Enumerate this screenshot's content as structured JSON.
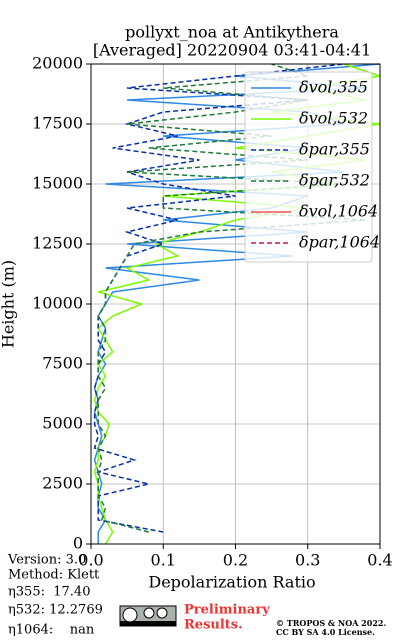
{
  "chart_data": {
    "type": "line",
    "title": [
      "pollyxt_noa at Antikythera",
      "[Averaged] 20220904 03:41-04:41"
    ],
    "xlabel": "Depolarization Ratio",
    "ylabel": "Height (m)",
    "xlim": [
      0,
      0.4
    ],
    "xticks": [
      {
        "value": 0,
        "label": "0.0"
      },
      0.1,
      0.2,
      0.3,
      0.4
    ],
    "ylim": [
      0,
      20000
    ],
    "yticks": [
      0,
      2500,
      5000,
      7500,
      10000,
      12500,
      15000,
      17500,
      20000
    ],
    "grid": true,
    "legend": "upper right",
    "y": [
      0,
      500,
      1000,
      1500,
      2000,
      2500,
      3000,
      3500,
      4000,
      4500,
      5000,
      5500,
      6000,
      6500,
      7000,
      7500,
      8000,
      8500,
      9000,
      9500,
      10000,
      10500,
      11000,
      11500,
      12000,
      12500,
      13000,
      13500,
      14000,
      14500,
      15000,
      15500,
      16000,
      16500,
      17000,
      17500,
      18000,
      18500,
      19000,
      19500,
      20000
    ],
    "series": [
      {
        "name": "δvol,355",
        "color": "#2e8ae6",
        "linestyle": "solid",
        "values": [
          0.01,
          0.01,
          0.02,
          0.01,
          0.01,
          0.015,
          0.01,
          0.005,
          0.01,
          0.015,
          0.01,
          0.005,
          0.01,
          0.005,
          0.01,
          0.02,
          0.01,
          0.015,
          0.02,
          0.01,
          0.02,
          0.03,
          0.15,
          0.02,
          0.28,
          0.05,
          0.3,
          0.1,
          0.25,
          0.3,
          0.02,
          0.35,
          0.2,
          0.3,
          0.1,
          0.35,
          0.3,
          0.05,
          0.38,
          0.2,
          0.4
        ]
      },
      {
        "name": "δvol,532",
        "color": "#7cfc00",
        "linestyle": "solid",
        "values": [
          0.02,
          0.03,
          0.02,
          0.015,
          0.01,
          0.01,
          0.005,
          0.01,
          0.01,
          0.02,
          0.025,
          0.01,
          0.005,
          0.01,
          0.02,
          0.01,
          0.03,
          0.02,
          0.01,
          0.03,
          0.07,
          0.01,
          0.08,
          0.05,
          0.12,
          0.09,
          0.15,
          0.2,
          0.3,
          0.1,
          0.35,
          0.25,
          0.38,
          0.2,
          0.3,
          0.4,
          0.25,
          0.38,
          0.3,
          0.4,
          0.35
        ]
      },
      {
        "name": "δpar,355",
        "color": "#0a2ea8",
        "linestyle": "dashed",
        "values": [
          null,
          0.1,
          0.01,
          0.01,
          0.01,
          0.08,
          0.01,
          0.06,
          0.005,
          0.01,
          0.005,
          0.005,
          0.01,
          0.005,
          0.01,
          0.01,
          0.02,
          0.01,
          0.01,
          0.01,
          0.02,
          0.02,
          0.03,
          0.04,
          0.05,
          0.1,
          0.05,
          0.12,
          0.05,
          0.2,
          0.1,
          0.05,
          0.15,
          0.03,
          0.12,
          0.05,
          0.1,
          0.3,
          0.05,
          0.2,
          0.35
        ]
      },
      {
        "name": "δpar,532",
        "color": "#1e7a3a",
        "linestyle": "dashed",
        "values": [
          null,
          0.08,
          0.015,
          0.02,
          0.01,
          0.01,
          0.01,
          0.015,
          0.01,
          0.02,
          0.01,
          0.01,
          0.01,
          0.02,
          0.01,
          0.01,
          0.01,
          0.02,
          0.02,
          0.01,
          0.02,
          0.02,
          0.03,
          0.04,
          0.05,
          0.06,
          0.15,
          0.38,
          0.1,
          0.1,
          0.35,
          0.05,
          0.3,
          0.08,
          0.25,
          0.05,
          0.2,
          0.3,
          0.1,
          0.3,
          0.25
        ]
      },
      {
        "name": "δvol,1064",
        "color": "#ef5350",
        "linestyle": "solid",
        "values": [
          null,
          null,
          null,
          null,
          null,
          null,
          null,
          null,
          null,
          null,
          null,
          null,
          null,
          null,
          null,
          null,
          null,
          null,
          null,
          null,
          null,
          null,
          null,
          null,
          null,
          null,
          null,
          null,
          null,
          null,
          null,
          null,
          null,
          null,
          null,
          null,
          null,
          null,
          null,
          null,
          null
        ]
      },
      {
        "name": "δpar,1064",
        "color": "#c2185b",
        "linestyle": "dashed",
        "values": [
          null,
          null,
          null,
          null,
          null,
          null,
          null,
          null,
          null,
          null,
          null,
          null,
          null,
          null,
          null,
          null,
          null,
          null,
          null,
          null,
          null,
          null,
          null,
          null,
          null,
          null,
          null,
          null,
          null,
          null,
          null,
          null,
          null,
          null,
          null,
          null,
          null,
          null,
          null,
          null,
          null
        ]
      }
    ],
    "annotations": [
      "Version: 3.0",
      "Method: Klett",
      "η355:  17.40",
      "η532: 12.2769",
      "η1064:    nan"
    ],
    "watermark": [
      "Preliminary",
      "Results."
    ],
    "license": [
      "© TROPOS & NOA 2022.",
      "CC BY SA 4.0 License."
    ]
  }
}
